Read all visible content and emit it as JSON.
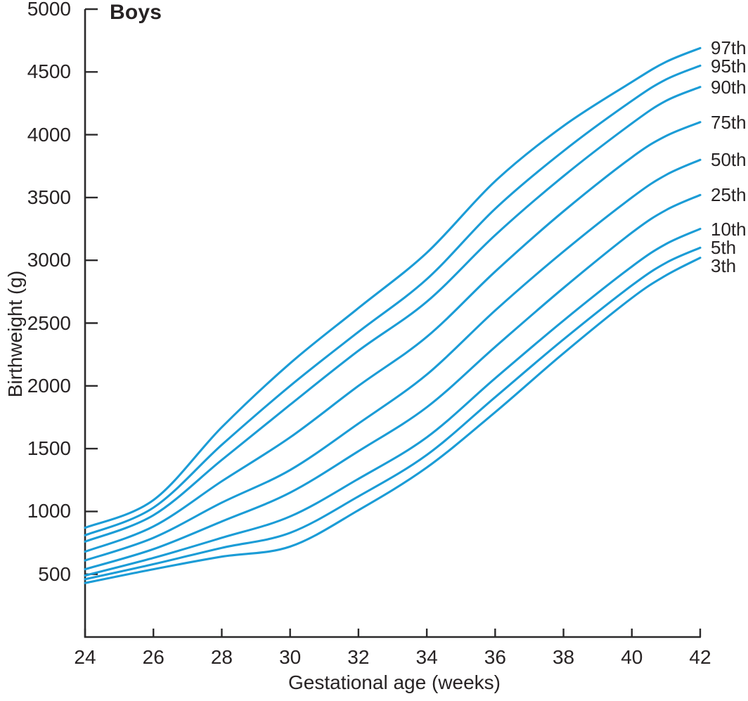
{
  "chart_data": {
    "type": "line",
    "title": "Boys",
    "xlabel": "Gestational age (weeks)",
    "ylabel": "Birthweight (g)",
    "xlim": [
      24,
      42
    ],
    "ylim": [
      0,
      5000
    ],
    "x_ticks": [
      24,
      26,
      28,
      30,
      32,
      34,
      36,
      38,
      40,
      42
    ],
    "y_ticks": [
      500,
      1000,
      1500,
      2000,
      2500,
      3000,
      3500,
      4000,
      4500,
      5000
    ],
    "grid": false,
    "legend_position": "right-edge-labels",
    "line_color": "#1b9cd6",
    "axis_color": "#2b2a2b",
    "text_color": "#272324",
    "x": [
      24,
      26,
      28,
      30,
      32,
      34,
      36,
      38,
      40,
      41,
      42
    ],
    "series": [
      {
        "name": "97th",
        "values": [
          870,
          1090,
          1670,
          2180,
          2620,
          3060,
          3630,
          4070,
          4420,
          4580,
          4690
        ]
      },
      {
        "name": "95th",
        "values": [
          810,
          1030,
          1530,
          2000,
          2430,
          2850,
          3410,
          3870,
          4270,
          4440,
          4550
        ]
      },
      {
        "name": "90th",
        "values": [
          760,
          970,
          1410,
          1850,
          2280,
          2670,
          3200,
          3670,
          4090,
          4270,
          4380
        ]
      },
      {
        "name": "75th",
        "values": [
          680,
          880,
          1240,
          1590,
          2000,
          2390,
          2910,
          3390,
          3820,
          3990,
          4100
        ]
      },
      {
        "name": "50th",
        "values": [
          610,
          790,
          1070,
          1330,
          1700,
          2090,
          2600,
          3070,
          3500,
          3680,
          3800
        ]
      },
      {
        "name": "25th",
        "values": [
          540,
          700,
          920,
          1150,
          1480,
          1830,
          2310,
          2780,
          3220,
          3400,
          3520
        ]
      },
      {
        "name": "10th",
        "values": [
          490,
          630,
          790,
          960,
          1260,
          1590,
          2060,
          2520,
          2950,
          3130,
          3250
        ]
      },
      {
        "name": "5th",
        "values": [
          460,
          580,
          710,
          830,
          1120,
          1450,
          1910,
          2370,
          2800,
          2980,
          3100
        ]
      },
      {
        "name": "3th",
        "values": [
          430,
          540,
          640,
          720,
          1010,
          1350,
          1790,
          2260,
          2700,
          2880,
          3020
        ]
      }
    ]
  }
}
